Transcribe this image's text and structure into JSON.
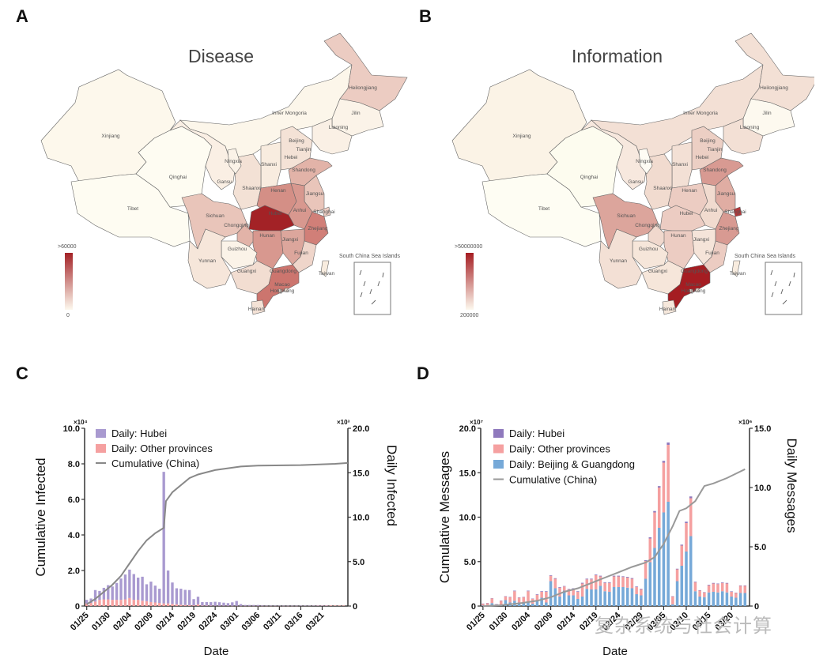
{
  "panels": {
    "A": {
      "letter": "A",
      "title": "Disease",
      "scale_max": ">60000",
      "scale_min": "0"
    },
    "B": {
      "letter": "B",
      "title": "Information",
      "scale_max": ">50000000",
      "scale_min": "200000"
    },
    "C": {
      "letter": "C"
    },
    "D": {
      "letter": "D"
    }
  },
  "map_common": {
    "south_china_sea_label": "South China Sea Islands",
    "provinces": [
      "Xinjiang",
      "Tibet",
      "Qinghai",
      "Gansu",
      "Inner Mongoria",
      "Heilongjiang",
      "Jilin",
      "Liaoning",
      "Beijing",
      "Tianjin",
      "Hebei",
      "Shanxi",
      "Shaanxi",
      "Ningxia",
      "Shandong",
      "Henan",
      "Jiangsu",
      "Anhui",
      "Shanghai",
      "Hubei",
      "Sichuan",
      "Chongqing",
      "Zhejiang",
      "Hunan",
      "Jiangxi",
      "Guizhou",
      "Fujian",
      "Yunnan",
      "Guangxi",
      "Guangdong",
      "Taiwan",
      "Macao",
      "HongKong",
      "Hainan"
    ]
  },
  "map_colors": {
    "disease": {
      "Xinjiang": "#fdf8ec",
      "Tibet": "#fefcf2",
      "Qinghai": "#fefcf2",
      "Gansu": "#faefe4",
      "Inner Mongoria": "#fcf6ea",
      "Heilongjiang": "#ecccc2",
      "Jilin": "#fbf3e8",
      "Liaoning": "#faf0e5",
      "Beijing": "#f0d8cd",
      "Tianjin": "#f5e4d9",
      "Hebei": "#f4e2d6",
      "Shanxi": "#f8ecdf",
      "Shaanxi": "#f3e1d5",
      "Ningxia": "#fbf3e8",
      "Shandong": "#e2b3a8",
      "Henan": "#d48f86",
      "Jiangsu": "#e9c5ba",
      "Anhui": "#d8988f",
      "Shanghai": "#ecccc2",
      "Hubei": "#a32226",
      "Sichuan": "#e9c5ba",
      "Chongqing": "#e2b3a8",
      "Zhejiang": "#d17f78",
      "Hunan": "#d8988f",
      "Jiangxi": "#dca69c",
      "Guizhou": "#fbf3e8",
      "Fujian": "#efd5ca",
      "Yunnan": "#f6e6da",
      "Guangxi": "#f2ddd1",
      "Guangdong": "#cc756e",
      "Taiwan": "#f8ecdf",
      "Macao": "#f6e6da",
      "HongKong": "#f6e6da",
      "Hainan": "#f4e2d6"
    },
    "information": {
      "Xinjiang": "#fbf3e6",
      "Tibet": "#fefdf3",
      "Qinghai": "#fdfcef",
      "Gansu": "#f7e8de",
      "Inner Mongoria": "#f3e0d5",
      "Heilongjiang": "#f3e0d5",
      "Jilin": "#fdf9ef",
      "Liaoning": "#f3e0d5",
      "Beijing": "#a51d22",
      "Tianjin": "#f0d8cd",
      "Hebei": "#eccfc4",
      "Shanxi": "#f3e0d5",
      "Shaanxi": "#f1dbcf",
      "Ningxia": "#fefcf4",
      "Shandong": "#d89a92",
      "Henan": "#ecccc2",
      "Jiangsu": "#e0ada3",
      "Anhui": "#f1dbcf",
      "Shanghai": "#b3373a",
      "Hubei": "#ecccc2",
      "Sichuan": "#dca59c",
      "Chongqing": "#f0d8cd",
      "Zhejiang": "#d89a92",
      "Hunan": "#ecccc2",
      "Jiangxi": "#f5e4d9",
      "Guizhou": "#f6e6da",
      "Fujian": "#ecccc2",
      "Yunnan": "#f3e0d5",
      "Guangxi": "#f6e6da",
      "Guangdong": "#a51d22",
      "Taiwan": "#f8ecdf",
      "Macao": "#f3e0d5",
      "HongKong": "#f3e0d5",
      "Hainan": "#f6e8dc"
    }
  },
  "chart_data": [
    {
      "type": "bar",
      "panel": "C",
      "xlabel": "Date",
      "ylabel_left": "Cumulative Infected",
      "ylabel_right": "Daily Infected",
      "left_multiplier": "×10⁴",
      "right_multiplier": "×10³",
      "ylim_left": [
        0,
        10.0
      ],
      "ylim_right": [
        0,
        20.0
      ],
      "left_ticks": [
        "0",
        "2.0",
        "4.0",
        "6.0",
        "8.0",
        "10.0"
      ],
      "right_ticks": [
        "0",
        "5.0",
        "10.0",
        "15.0",
        "20.0"
      ],
      "date_ticks": [
        "01/25",
        "01/30",
        "02/04",
        "02/09",
        "02/14",
        "02/19",
        "02/24",
        "03/01",
        "03/06",
        "03/11",
        "03/16",
        "03/21"
      ],
      "legend": [
        {
          "label": "Daily: Hubei",
          "color": "#a99ad0",
          "kind": "bar"
        },
        {
          "label": "Daily: Other provinces",
          "color": "#f5a0a0",
          "kind": "bar"
        },
        {
          "label": "Cumulative (China)",
          "color": "#888888",
          "kind": "line"
        }
      ],
      "legend_position": "top-left",
      "series": [
        {
          "name": "Daily: Hubei",
          "axis": "right",
          "values": [
            0.4,
            0.5,
            1.3,
            1.0,
            1.3,
            1.6,
            1.5,
            1.9,
            2.4,
            2.8,
            3.2,
            2.9,
            2.5,
            2.7,
            1.9,
            2.3,
            1.9,
            1.6,
            14.8,
            3.7,
            2.4,
            1.8,
            1.8,
            1.7,
            1.7,
            0.7,
            0.85,
            0.4,
            0.4,
            0.4,
            0.45,
            0.4,
            0.35,
            0.3,
            0.4,
            0.55,
            0.2,
            0.1,
            0.1,
            0.1,
            0.1,
            0.05,
            0.03,
            0.03,
            0.02,
            0.02,
            0.01,
            0.01,
            0.01,
            0.01,
            0.01,
            0.01,
            0.01,
            0.01,
            0.01,
            0.01,
            0.01,
            0.0,
            0.0,
            0.0,
            0.0
          ]
        },
        {
          "name": "Daily: Other provinces",
          "axis": "right",
          "values": [
            0.3,
            0.35,
            0.5,
            0.7,
            0.75,
            0.75,
            0.7,
            0.7,
            0.7,
            0.75,
            0.9,
            0.7,
            0.7,
            0.6,
            0.55,
            0.45,
            0.4,
            0.35,
            0.3,
            0.3,
            0.25,
            0.2,
            0.15,
            0.12,
            0.1,
            0.08,
            0.2,
            0.05,
            0.05,
            0.04,
            0.03,
            0.03,
            0.03,
            0.03,
            0.02,
            0.02,
            0.02,
            0.02,
            0.02,
            0.02,
            0.02,
            0.02,
            0.02,
            0.02,
            0.02,
            0.02,
            0.02,
            0.02,
            0.02,
            0.02,
            0.03,
            0.03,
            0.03,
            0.04,
            0.05,
            0.05,
            0.06,
            0.06,
            0.05,
            0.05,
            0.05
          ]
        },
        {
          "name": "Cumulative (China)",
          "axis": "left",
          "points": [
            [
              0,
              0.1
            ],
            [
              2,
              0.4
            ],
            [
              4,
              0.8
            ],
            [
              6,
              1.2
            ],
            [
              8,
              1.7
            ],
            [
              10,
              2.4
            ],
            [
              12,
              3.1
            ],
            [
              14,
              3.7
            ],
            [
              16,
              4.1
            ],
            [
              18,
              4.4
            ],
            [
              18.5,
              5.9
            ],
            [
              20,
              6.4
            ],
            [
              22,
              6.8
            ],
            [
              24,
              7.2
            ],
            [
              26,
              7.4
            ],
            [
              30,
              7.65
            ],
            [
              36,
              7.85
            ],
            [
              40,
              7.9
            ],
            [
              50,
              7.93
            ],
            [
              58,
              8.0
            ],
            [
              61,
              8.05
            ]
          ]
        }
      ]
    },
    {
      "type": "bar",
      "panel": "D",
      "xlabel": "Date",
      "ylabel_left": "Cumulative Messages",
      "ylabel_right": "Daily Messages",
      "left_multiplier": "×10⁷",
      "right_multiplier": "×10⁶",
      "ylim_left": [
        0,
        20.0
      ],
      "ylim_right": [
        0,
        15.0
      ],
      "left_ticks": [
        "0",
        "5.0",
        "10.0",
        "15.0",
        "20.0"
      ],
      "right_ticks": [
        "0",
        "5.0",
        "10.0",
        "15.0"
      ],
      "date_ticks": [
        "01/25",
        "01/30",
        "02/04",
        "02/09",
        "02/14",
        "02/19",
        "02/24",
        "02/29",
        "03/05",
        "03/10",
        "03/15",
        "03/20"
      ],
      "legend": [
        {
          "label": "Daily: Hubei",
          "color": "#8f79bd",
          "kind": "bar"
        },
        {
          "label": "Daily: Other provinces",
          "color": "#f5a0a0",
          "kind": "bar"
        },
        {
          "label": "Daily: Beijing & Guangdong",
          "color": "#76a9d8",
          "kind": "bar"
        },
        {
          "label": "Cumulative (China)",
          "color": "#999999",
          "kind": "line"
        }
      ],
      "legend_position": "top-left",
      "series": [
        {
          "name": "Daily: Beijing & Guangdong",
          "axis": "right",
          "values": [
            0.05,
            0.05,
            0.25,
            0.05,
            0.1,
            0.5,
            0.3,
            0.45,
            0.3,
            0.3,
            0.4,
            0.2,
            0.4,
            0.7,
            0.3,
            2.1,
            1.5,
            0.8,
            1.3,
            0.9,
            0.9,
            0.6,
            0.8,
            1.45,
            1.4,
            1.4,
            1.7,
            1.25,
            1.2,
            1.6,
            1.6,
            1.6,
            1.55,
            1.5,
            1.0,
            0.9,
            2.3,
            3.7,
            4.9,
            6.6,
            7.9,
            8.8,
            0.15,
            2.1,
            3.4,
            4.6,
            5.9,
            1.25,
            0.8,
            0.75,
            1.15,
            1.2,
            1.15,
            1.25,
            1.15,
            0.8,
            0.7,
            1.1,
            1.1
          ]
        },
        {
          "name": "Daily: Other provinces",
          "axis": "right",
          "values": [
            0.15,
            0.2,
            0.4,
            0.1,
            0.35,
            0.3,
            0.45,
            0.8,
            0.4,
            0.45,
            0.85,
            0.4,
            0.55,
            0.5,
            0.9,
            0.45,
            0.8,
            0.75,
            0.35,
            0.5,
            0.55,
            0.6,
            1.1,
            0.8,
            0.85,
            1.2,
            0.8,
            0.7,
            0.75,
            0.9,
            0.9,
            0.85,
            0.85,
            0.8,
            0.6,
            0.5,
            1.5,
            2.0,
            3.0,
            3.4,
            4.2,
            4.8,
            0.65,
            1.0,
            1.7,
            2.4,
            3.2,
            0.75,
            0.5,
            0.4,
            0.6,
            0.7,
            0.7,
            0.7,
            0.75,
            0.4,
            0.4,
            0.6,
            0.6
          ]
        },
        {
          "name": "Daily: Hubei",
          "axis": "right",
          "values": [
            0.01,
            0.01,
            0.02,
            0.01,
            0.02,
            0.03,
            0.03,
            0.05,
            0.03,
            0.03,
            0.05,
            0.03,
            0.05,
            0.05,
            0.05,
            0.05,
            0.05,
            0.05,
            0.04,
            0.04,
            0.05,
            0.05,
            0.06,
            0.06,
            0.06,
            0.06,
            0.06,
            0.06,
            0.06,
            0.06,
            0.06,
            0.06,
            0.06,
            0.06,
            0.05,
            0.05,
            0.07,
            0.1,
            0.12,
            0.12,
            0.15,
            0.2,
            0.03,
            0.05,
            0.08,
            0.12,
            0.15,
            0.05,
            0.04,
            0.03,
            0.05,
            0.05,
            0.05,
            0.05,
            0.05,
            0.04,
            0.03,
            0.04,
            0.04
          ]
        },
        {
          "name": "Cumulative (China)",
          "axis": "left",
          "points": [
            [
              0,
              0.0
            ],
            [
              4,
              0.1
            ],
            [
              8,
              0.3
            ],
            [
              12,
              0.6
            ],
            [
              15,
              1.0
            ],
            [
              18,
              1.6
            ],
            [
              21,
              2.0
            ],
            [
              24,
              2.6
            ],
            [
              27,
              3.2
            ],
            [
              30,
              3.8
            ],
            [
              33,
              4.4
            ],
            [
              36,
              4.9
            ],
            [
              38,
              5.5
            ],
            [
              40,
              7.0
            ],
            [
              42,
              9.0
            ],
            [
              43.5,
              10.7
            ],
            [
              45,
              11.0
            ],
            [
              47,
              11.8
            ],
            [
              49,
              13.5
            ],
            [
              51,
              13.8
            ],
            [
              54,
              14.4
            ],
            [
              56,
              14.9
            ],
            [
              58,
              15.4
            ]
          ]
        }
      ]
    }
  ],
  "watermark": "复杂系统与社会计算"
}
